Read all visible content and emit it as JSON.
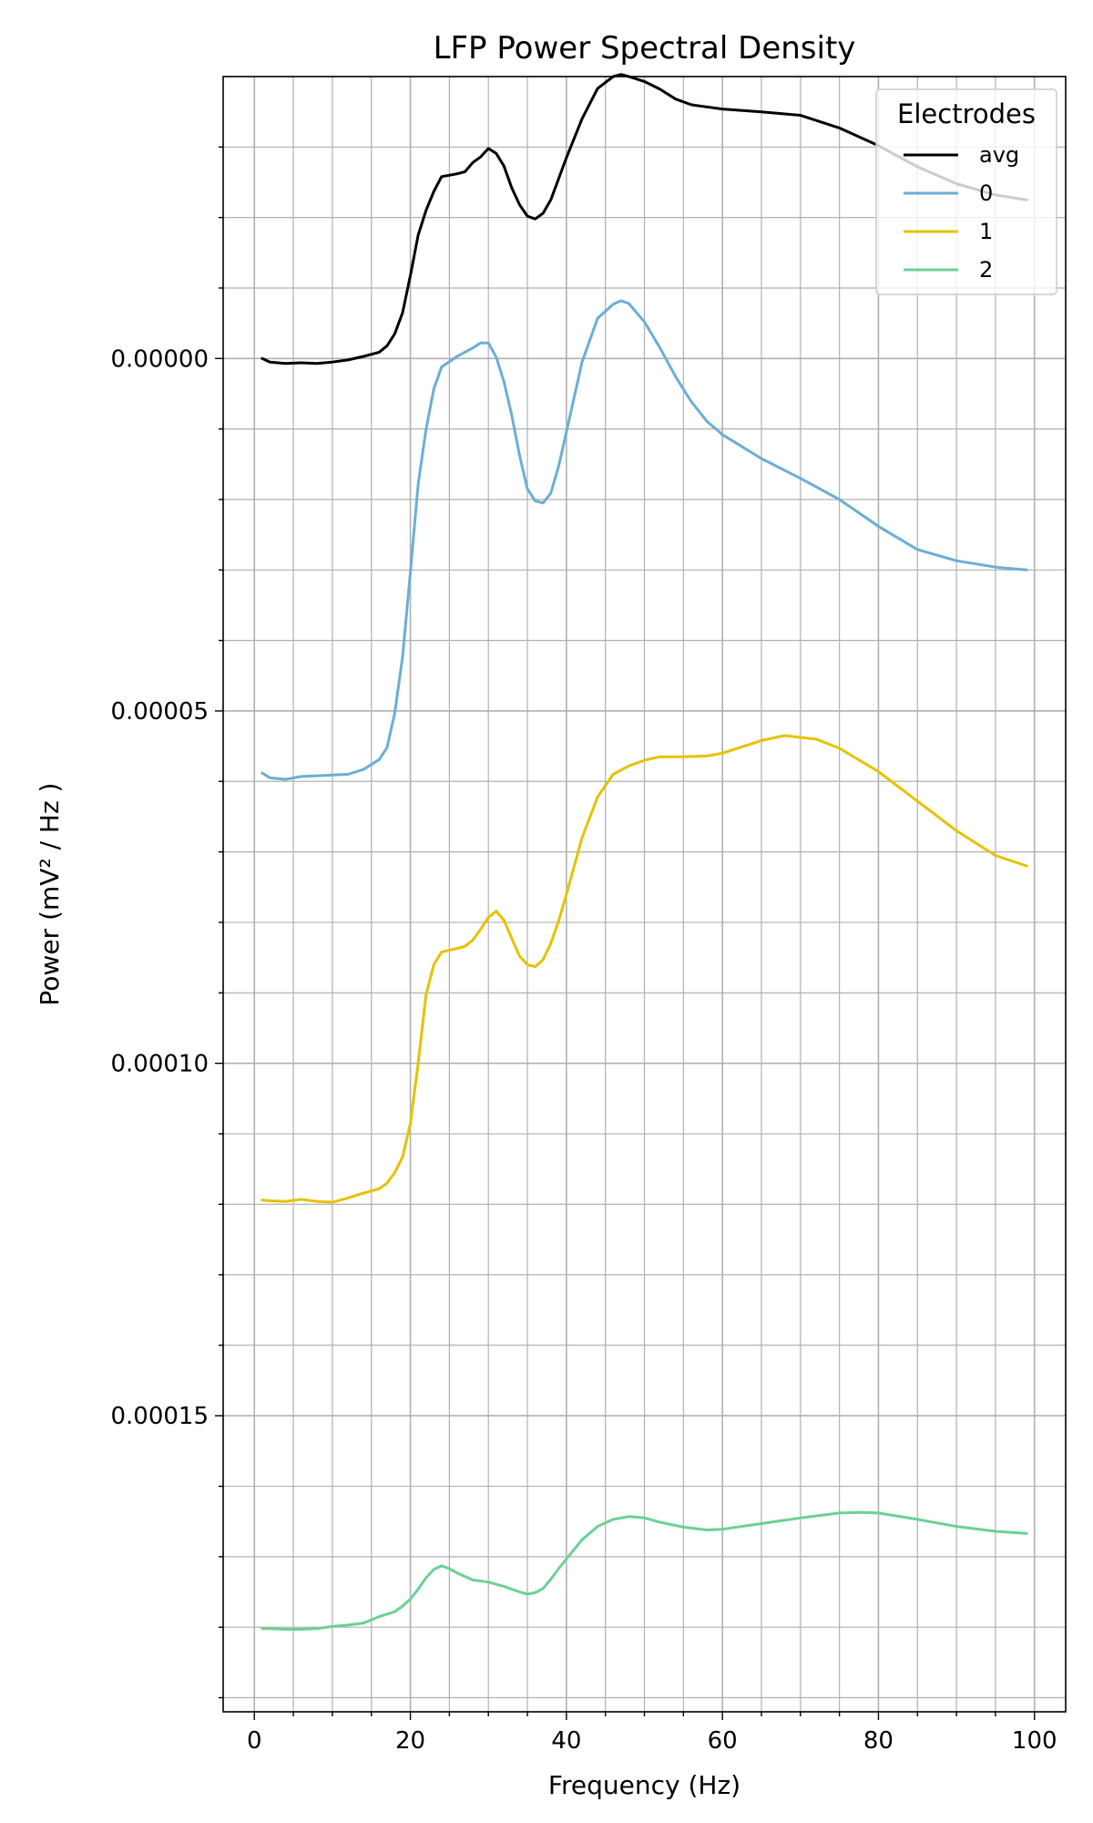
{
  "chart_data": {
    "type": "line",
    "title": "LFP Power Spectral Density",
    "xlabel": "Frequency (Hz)",
    "ylabel": "Power (mV² / Hz )",
    "xlim": [
      -4,
      104
    ],
    "ylim": [
      0.000192,
      -4e-05
    ],
    "y_inverted": true,
    "grid": true,
    "minor_grid": true,
    "x_ticks": [
      0,
      20,
      40,
      60,
      80,
      100
    ],
    "x_tick_labels": [
      "0",
      "20",
      "40",
      "60",
      "80",
      "100"
    ],
    "y_ticks": [
      0.0,
      5e-05,
      0.0001,
      0.00015
    ],
    "y_tick_labels": [
      "0.00000",
      "0.00005",
      "0.00010",
      "0.00015"
    ],
    "legend": {
      "title": "Electrodes",
      "placement": "top-right"
    },
    "series": [
      {
        "name": "avg",
        "color": "#000000",
        "x": [
          1,
          2,
          4,
          6,
          8,
          10,
          12,
          14,
          16,
          17,
          18,
          19,
          20,
          21,
          22,
          23,
          24,
          26,
          27,
          28,
          29,
          30,
          31,
          32,
          33,
          34,
          35,
          36,
          37,
          38,
          39,
          40,
          42,
          44,
          46,
          47,
          48,
          50,
          52,
          54,
          56,
          58,
          60,
          65,
          70,
          75,
          80,
          85,
          90,
          95,
          99
        ],
        "y": [
          0.0,
          5e-07,
          7e-07,
          6e-07,
          7e-07,
          5e-07,
          2e-07,
          -3e-07,
          -9e-07,
          -1.8e-06,
          -3.5e-06,
          -6.5e-06,
          -1.18e-05,
          -1.75e-05,
          -2.1e-05,
          -2.37e-05,
          -2.58e-05,
          -2.62e-05,
          -2.65e-05,
          -2.78e-05,
          -2.86e-05,
          -2.98e-05,
          -2.91e-05,
          -2.73e-05,
          -2.42e-05,
          -2.18e-05,
          -2.02e-05,
          -1.98e-05,
          -2.06e-05,
          -2.25e-05,
          -2.55e-05,
          -2.85e-05,
          -3.4e-05,
          -3.83e-05,
          -4e-05,
          -4.03e-05,
          -4e-05,
          -3.93e-05,
          -3.82e-05,
          -3.68e-05,
          -3.6e-05,
          -3.57e-05,
          -3.54e-05,
          -3.5e-05,
          -3.45e-05,
          -3.27e-05,
          -3.02e-05,
          -2.72e-05,
          -2.48e-05,
          -2.32e-05,
          -2.25e-05
        ]
      },
      {
        "name": "0",
        "color": "#6baed6",
        "x": [
          1,
          2,
          4,
          6,
          8,
          10,
          12,
          14,
          16,
          17,
          18,
          19,
          20,
          21,
          22,
          23,
          24,
          26,
          28,
          29,
          30,
          31,
          32,
          33,
          34,
          35,
          36,
          37,
          38,
          39,
          40,
          42,
          44,
          46,
          47,
          48,
          50,
          52,
          54,
          56,
          58,
          60,
          65,
          70,
          75,
          80,
          85,
          90,
          95,
          99
        ],
        "y": [
          5.88e-05,
          5.95e-05,
          5.97e-05,
          5.93e-05,
          5.92e-05,
          5.91e-05,
          5.9e-05,
          5.83e-05,
          5.69e-05,
          5.52e-05,
          5.03e-05,
          4.23e-05,
          3.03e-05,
          1.78e-05,
          1.01e-05,
          4.3e-06,
          1.2e-06,
          -3e-07,
          -1.5e-06,
          -2.2e-06,
          -2.2e-06,
          -2e-07,
          3.3e-06,
          8.1e-06,
          1.38e-05,
          1.85e-05,
          2.02e-05,
          2.05e-05,
          1.91e-05,
          1.53e-05,
          1.04e-05,
          5e-07,
          -5.7e-06,
          -7.7e-06,
          -8.2e-06,
          -7.8e-06,
          -5.2e-06,
          -1.5e-06,
          2.6e-06,
          6.1e-06,
          8.9e-06,
          1.08e-05,
          1.42e-05,
          1.7e-05,
          2e-05,
          2.38e-05,
          2.71e-05,
          2.87e-05,
          2.96e-05,
          3e-05
        ]
      },
      {
        "name": "1",
        "color": "#e6c200",
        "x": [
          1,
          2,
          4,
          6,
          8,
          10,
          12,
          14,
          16,
          17,
          18,
          19,
          20,
          21,
          22,
          23,
          24,
          26,
          27,
          28,
          29,
          30,
          31,
          32,
          33,
          34,
          35,
          36,
          37,
          38,
          39,
          40,
          42,
          44,
          46,
          48,
          50,
          52,
          55,
          58,
          60,
          65,
          68,
          72,
          75,
          80,
          85,
          90,
          95,
          99
        ],
        "y": [
          0.0001194,
          0.0001195,
          0.0001196,
          0.0001193,
          0.0001196,
          0.0001197,
          0.0001191,
          0.0001184,
          0.0001178,
          0.000117,
          0.0001155,
          0.0001133,
          0.0001085,
          0.0001,
          9.03e-05,
          8.6e-05,
          8.42e-05,
          8.37e-05,
          8.34e-05,
          8.25e-05,
          8.1e-05,
          7.93e-05,
          7.84e-05,
          7.97e-05,
          8.23e-05,
          8.48e-05,
          8.6e-05,
          8.63e-05,
          8.53e-05,
          8.3e-05,
          7.98e-05,
          7.6e-05,
          6.8e-05,
          6.22e-05,
          5.9e-05,
          5.78e-05,
          5.7e-05,
          5.65e-05,
          5.65e-05,
          5.64e-05,
          5.6e-05,
          5.42e-05,
          5.35e-05,
          5.4e-05,
          5.53e-05,
          5.86e-05,
          6.28e-05,
          6.7e-05,
          7.05e-05,
          7.2e-05
        ]
      },
      {
        "name": "2",
        "color": "#6bd196",
        "x": [
          1,
          2,
          4,
          6,
          8,
          10,
          12,
          14,
          16,
          18,
          19,
          20,
          21,
          22,
          23,
          24,
          25,
          26,
          28,
          30,
          32,
          34,
          35,
          36,
          37,
          38,
          39,
          40,
          42,
          44,
          46,
          48,
          50,
          52,
          55,
          58,
          60,
          65,
          70,
          75,
          78,
          80,
          85,
          90,
          95,
          99
        ],
        "y": [
          0.0001802,
          0.0001802,
          0.0001803,
          0.0001803,
          0.0001802,
          0.0001799,
          0.0001797,
          0.0001794,
          0.0001785,
          0.0001778,
          0.000177,
          0.000176,
          0.0001746,
          0.000173,
          0.0001718,
          0.0001713,
          0.0001717,
          0.0001723,
          0.0001733,
          0.0001736,
          0.0001742,
          0.000175,
          0.0001753,
          0.0001751,
          0.0001745,
          0.0001732,
          0.0001717,
          0.0001703,
          0.0001676,
          0.0001657,
          0.0001647,
          0.0001643,
          0.0001645,
          0.0001651,
          0.0001658,
          0.0001662,
          0.0001661,
          0.0001653,
          0.0001645,
          0.0001638,
          0.0001637,
          0.0001638,
          0.0001647,
          0.0001657,
          0.0001664,
          0.0001667
        ]
      }
    ]
  }
}
